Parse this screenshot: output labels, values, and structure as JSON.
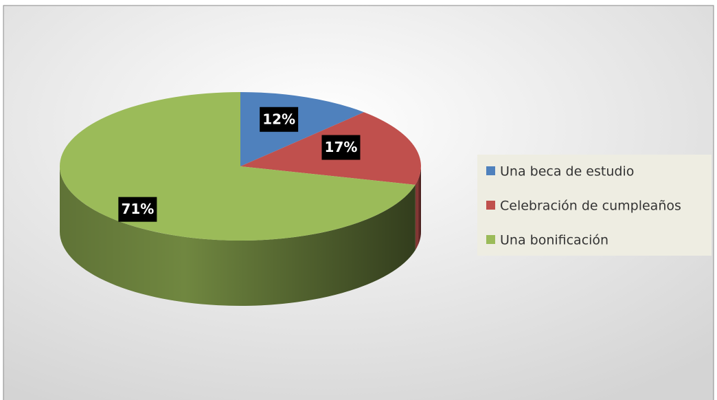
{
  "chart_data": {
    "type": "pie",
    "categories": [
      "Una beca de estudio",
      "Celebración de cumpleaños",
      "Una bonificación"
    ],
    "values": [
      12,
      17,
      71
    ],
    "value_labels": [
      "12%",
      "17%",
      "71%"
    ],
    "colors": [
      "#4f81bd",
      "#c0504d",
      "#9bbb59"
    ],
    "legend": "right"
  }
}
